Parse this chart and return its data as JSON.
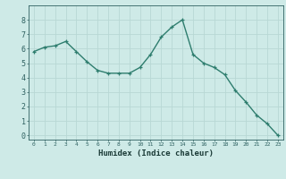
{
  "x": [
    0,
    1,
    2,
    3,
    4,
    5,
    6,
    7,
    8,
    9,
    10,
    11,
    12,
    13,
    14,
    15,
    16,
    17,
    18,
    19,
    20,
    21,
    22,
    23
  ],
  "y": [
    5.8,
    6.1,
    6.2,
    6.5,
    5.8,
    5.1,
    4.5,
    4.3,
    4.3,
    4.3,
    4.7,
    5.6,
    6.8,
    7.5,
    8.0,
    5.6,
    5.0,
    4.7,
    4.2,
    3.1,
    2.3,
    1.4,
    0.8,
    0.0
  ],
  "xlabel": "Humidex (Indice chaleur)",
  "ylim": [
    -0.3,
    9.0
  ],
  "xlim": [
    -0.5,
    23.5
  ],
  "line_color": "#2e7d6e",
  "marker": "+",
  "bg_color": "#ceeae7",
  "grid_color": "#b8d8d4",
  "tick_color": "#2e6060",
  "label_color": "#1a3a36",
  "yticks": [
    0,
    1,
    2,
    3,
    4,
    5,
    6,
    7,
    8
  ],
  "xticks": [
    0,
    1,
    2,
    3,
    4,
    5,
    6,
    7,
    8,
    9,
    10,
    11,
    12,
    13,
    14,
    15,
    16,
    17,
    18,
    19,
    20,
    21,
    22,
    23
  ],
  "xtick_labels": [
    "0",
    "1",
    "2",
    "3",
    "4",
    "5",
    "6",
    "7",
    "8",
    "9",
    "10",
    "11",
    "12",
    "13",
    "14",
    "15",
    "16",
    "17",
    "18",
    "19",
    "20",
    "21",
    "22",
    "23"
  ],
  "linewidth": 1.0,
  "markersize": 3.5,
  "xlabel_fontsize": 6.5,
  "xtick_fontsize": 4.5,
  "ytick_fontsize": 6.0
}
